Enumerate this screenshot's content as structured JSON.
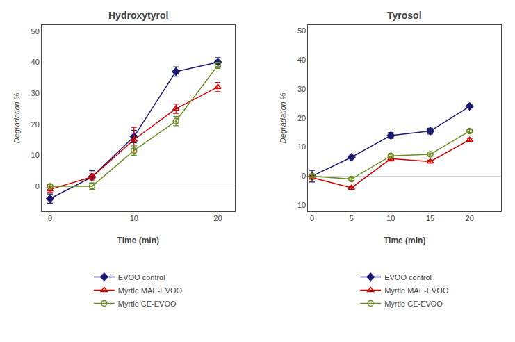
{
  "chart_data": [
    {
      "type": "line",
      "title": "Hydroxytyrol",
      "xlabel": "Time (min)",
      "ylabel": "Degradation %",
      "xlim": [
        -1,
        22
      ],
      "ylim": [
        -8,
        52
      ],
      "xticks": [
        0,
        10,
        20
      ],
      "yticks": [
        0,
        10,
        20,
        30,
        40,
        50
      ],
      "grid": false,
      "legend": "bottom",
      "x": [
        0,
        5,
        10,
        15,
        20
      ],
      "series": [
        {
          "name": "EVOO control",
          "color": "#1a1a6e",
          "marker": "diamond",
          "line_style": "solid",
          "values": [
            -4,
            3,
            16,
            37,
            40
          ],
          "yerr": [
            1.5,
            2.0,
            2.0,
            1.5,
            1.5
          ]
        },
        {
          "name": "Myrtle MAE-EVOO",
          "color": "#cc0000",
          "marker": "triangle-up-open",
          "line_style": "solid",
          "values": [
            -1,
            3,
            15,
            25,
            32
          ],
          "yerr": [
            1.0,
            1.0,
            4.0,
            1.5,
            1.5
          ]
        },
        {
          "name": "Myrtle CE-EVOO",
          "color": "#6b8e23",
          "marker": "circle-open",
          "line_style": "solid",
          "values": [
            0,
            0,
            11.5,
            21,
            39
          ],
          "yerr": [
            0.5,
            1.0,
            1.5,
            1.5,
            1.0
          ]
        }
      ]
    },
    {
      "type": "line",
      "title": "Tyrosol",
      "xlabel": "Time (min)",
      "ylabel": "Degradation %",
      "xlim": [
        -0.5,
        24
      ],
      "ylim": [
        -12,
        52
      ],
      "xticks": [
        0,
        5,
        10,
        15,
        20
      ],
      "yticks": [
        -10,
        0,
        10,
        20,
        30,
        40,
        50
      ],
      "grid": false,
      "legend": "bottom",
      "x": [
        0,
        5,
        10,
        15,
        20
      ],
      "series": [
        {
          "name": "EVOO control",
          "color": "#1a1a6e",
          "marker": "diamond",
          "line_style": "solid",
          "values": [
            0,
            6.5,
            14,
            15.5,
            24
          ],
          "yerr": [
            2.0,
            0.5,
            1.0,
            1.0,
            0.5
          ]
        },
        {
          "name": "Myrtle MAE-EVOO",
          "color": "#cc0000",
          "marker": "triangle-up-open",
          "line_style": "solid",
          "values": [
            -0.5,
            -4.0,
            6.0,
            5.0,
            12.5
          ],
          "yerr": [
            0.5,
            0.5,
            0.8,
            0.5,
            0.5
          ]
        },
        {
          "name": "Myrtle CE-EVOO",
          "color": "#6b8e23",
          "marker": "circle-open",
          "line_style": "solid",
          "values": [
            0,
            -1.0,
            7.0,
            7.5,
            15.5
          ],
          "yerr": [
            0.5,
            0.5,
            0.5,
            0.5,
            0.5
          ]
        }
      ]
    }
  ]
}
